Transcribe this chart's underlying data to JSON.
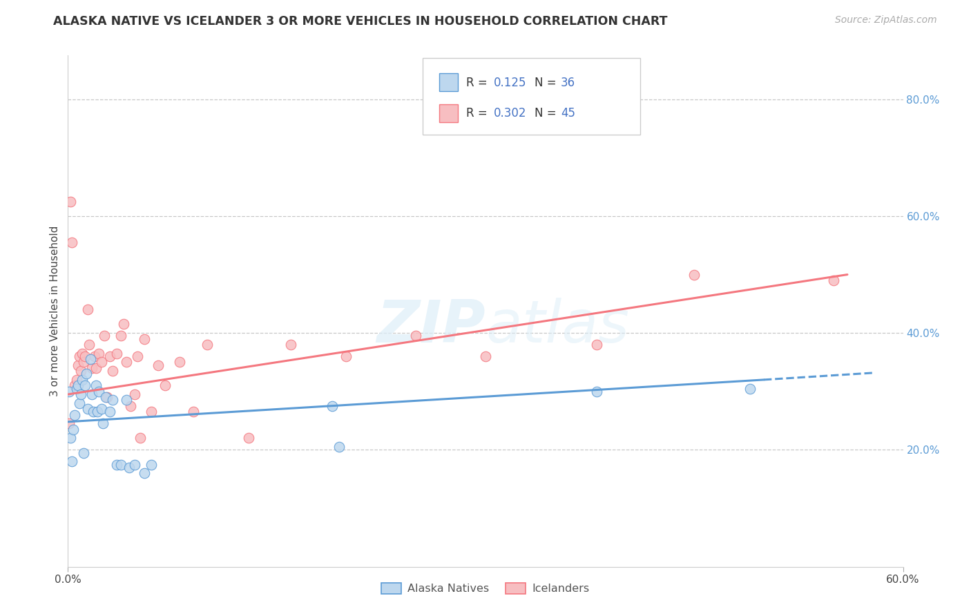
{
  "title": "ALASKA NATIVE VS ICELANDER 3 OR MORE VEHICLES IN HOUSEHOLD CORRELATION CHART",
  "source": "Source: ZipAtlas.com",
  "ylabel": "3 or more Vehicles in Household",
  "right_yticks": [
    "20.0%",
    "40.0%",
    "60.0%",
    "80.0%"
  ],
  "right_ytick_vals": [
    0.2,
    0.4,
    0.6,
    0.8
  ],
  "xmin": 0.0,
  "xmax": 0.6,
  "ymin": 0.0,
  "ymax": 0.875,
  "blue_color": "#5b9bd5",
  "pink_color": "#f4777f",
  "blue_light": "#bdd7ee",
  "pink_light": "#f7bec1",
  "alaska_natives_x": [
    0.001,
    0.002,
    0.003,
    0.004,
    0.005,
    0.006,
    0.007,
    0.008,
    0.009,
    0.01,
    0.011,
    0.012,
    0.013,
    0.014,
    0.016,
    0.017,
    0.018,
    0.02,
    0.021,
    0.022,
    0.024,
    0.025,
    0.027,
    0.03,
    0.032,
    0.035,
    0.038,
    0.042,
    0.044,
    0.048,
    0.055,
    0.06,
    0.19,
    0.195,
    0.38,
    0.49
  ],
  "alaska_natives_y": [
    0.3,
    0.22,
    0.18,
    0.235,
    0.26,
    0.305,
    0.31,
    0.28,
    0.295,
    0.32,
    0.195,
    0.31,
    0.33,
    0.27,
    0.355,
    0.295,
    0.265,
    0.31,
    0.265,
    0.3,
    0.27,
    0.245,
    0.29,
    0.265,
    0.285,
    0.175,
    0.175,
    0.285,
    0.17,
    0.175,
    0.16,
    0.175,
    0.275,
    0.205,
    0.3,
    0.305
  ],
  "icelanders_x": [
    0.001,
    0.002,
    0.003,
    0.005,
    0.006,
    0.007,
    0.008,
    0.009,
    0.01,
    0.011,
    0.012,
    0.014,
    0.015,
    0.017,
    0.019,
    0.02,
    0.022,
    0.024,
    0.026,
    0.028,
    0.03,
    0.032,
    0.035,
    0.038,
    0.04,
    0.042,
    0.045,
    0.048,
    0.05,
    0.052,
    0.055,
    0.06,
    0.065,
    0.07,
    0.08,
    0.09,
    0.1,
    0.13,
    0.16,
    0.2,
    0.25,
    0.3,
    0.38,
    0.45,
    0.55
  ],
  "icelanders_y": [
    0.245,
    0.625,
    0.555,
    0.31,
    0.32,
    0.345,
    0.36,
    0.335,
    0.365,
    0.35,
    0.36,
    0.44,
    0.38,
    0.34,
    0.36,
    0.34,
    0.365,
    0.35,
    0.395,
    0.29,
    0.36,
    0.335,
    0.365,
    0.395,
    0.415,
    0.35,
    0.275,
    0.295,
    0.36,
    0.22,
    0.39,
    0.265,
    0.345,
    0.31,
    0.35,
    0.265,
    0.38,
    0.22,
    0.38,
    0.36,
    0.395,
    0.36,
    0.38,
    0.5,
    0.49
  ],
  "blue_line_x_start": 0.0,
  "blue_line_x_solid_end": 0.5,
  "blue_line_x_dash_end": 0.58,
  "blue_line_y_start": 0.248,
  "blue_line_y_solid_end": 0.32,
  "blue_line_y_dash_end": 0.332,
  "pink_line_x_start": 0.0,
  "pink_line_x_end": 0.56,
  "pink_line_y_start": 0.295,
  "pink_line_y_end": 0.5
}
